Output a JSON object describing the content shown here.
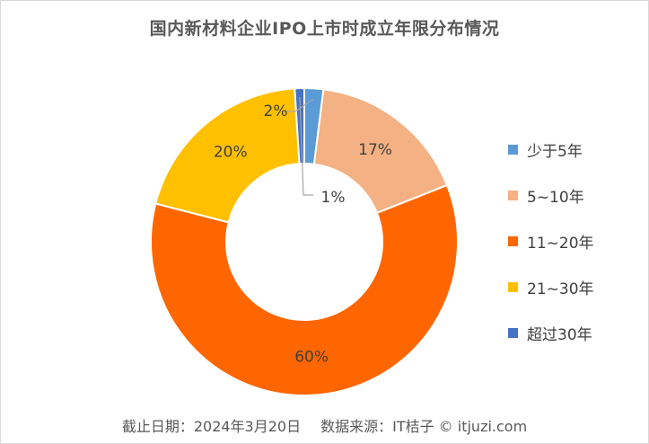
{
  "chart_data": {
    "type": "pie",
    "title": "国内新材料企业IPO上市时成立年限分布情况",
    "categories": [
      "少于5年",
      "5~10年",
      "11~20年",
      "21~30年",
      "超过30年"
    ],
    "values": [
      2,
      17,
      60,
      20,
      1
    ],
    "labels": [
      "2%",
      "17%",
      "60%",
      "20%",
      "1%"
    ],
    "unit": "%",
    "legend_position": "right",
    "colors": [
      "#5b9bd5",
      "#f4b183",
      "#ff6600",
      "#ffc000",
      "#4472c4"
    ]
  },
  "footer": {
    "date_text": "截止日期：2024年3月20日",
    "source_text": "数据来源：IT桔子 © itjuzi.com"
  }
}
